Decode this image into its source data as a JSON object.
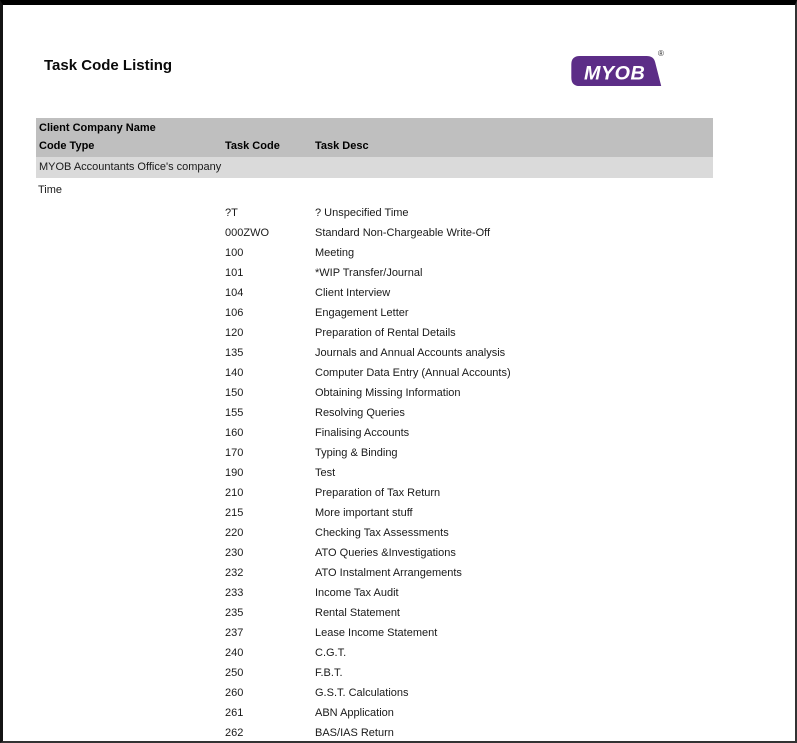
{
  "page": {
    "title": "Task Code Listing"
  },
  "logo": {
    "text": "MYOB",
    "registered": "®"
  },
  "colors": {
    "brand-purple": "#5c2d87",
    "header-band": "#bfbfbf",
    "company-band": "#dadada"
  },
  "table": {
    "header": {
      "client_company_label": "Client Company Name",
      "code_type_label": "Code Type",
      "task_code_label": "Task Code",
      "task_desc_label": "Task Desc"
    },
    "company_row": "MYOB Accountants Office's company",
    "code_type_value": "Time",
    "rows": [
      {
        "code": "?T",
        "desc": "? Unspecified Time"
      },
      {
        "code": "000ZWO",
        "desc": "Standard Non-Chargeable Write-Off"
      },
      {
        "code": "100",
        "desc": "Meeting"
      },
      {
        "code": "101",
        "desc": "*WIP Transfer/Journal"
      },
      {
        "code": "104",
        "desc": "Client Interview"
      },
      {
        "code": "106",
        "desc": "Engagement Letter"
      },
      {
        "code": "120",
        "desc": "Preparation of Rental Details"
      },
      {
        "code": "135",
        "desc": "Journals and Annual Accounts analysis"
      },
      {
        "code": "140",
        "desc": "Computer Data Entry (Annual Accounts)"
      },
      {
        "code": "150",
        "desc": "Obtaining Missing Information"
      },
      {
        "code": "155",
        "desc": "Resolving Queries"
      },
      {
        "code": "160",
        "desc": "Finalising Accounts"
      },
      {
        "code": "170",
        "desc": "Typing & Binding"
      },
      {
        "code": "190",
        "desc": "Test"
      },
      {
        "code": "210",
        "desc": "Preparation of Tax Return"
      },
      {
        "code": "215",
        "desc": "More important stuff"
      },
      {
        "code": "220",
        "desc": "Checking Tax Assessments"
      },
      {
        "code": "230",
        "desc": "ATO Queries &Investigations"
      },
      {
        "code": "232",
        "desc": "ATO Instalment Arrangements"
      },
      {
        "code": "233",
        "desc": "Income Tax Audit"
      },
      {
        "code": "235",
        "desc": "Rental Statement"
      },
      {
        "code": "237",
        "desc": "Lease Income Statement"
      },
      {
        "code": "240",
        "desc": "C.G.T."
      },
      {
        "code": "250",
        "desc": "F.B.T."
      },
      {
        "code": "260",
        "desc": "G.S.T. Calculations"
      },
      {
        "code": "261",
        "desc": "ABN Application"
      },
      {
        "code": "262",
        "desc": "BAS/IAS Return"
      }
    ]
  }
}
